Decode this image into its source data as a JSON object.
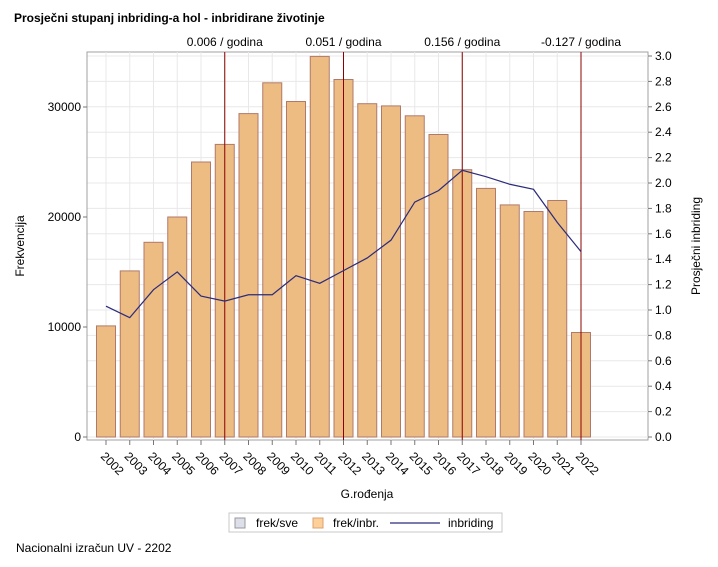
{
  "chart_data": {
    "type": "bar",
    "title": "Prosječni stupanj inbriding-a hol - inbridirane životinje",
    "xlabel": "G.rođenja",
    "ylabel": "Frekvencija",
    "y2label": "Prosječni inbriding",
    "ylim": [
      0,
      35000
    ],
    "y2lim": [
      0,
      3.0
    ],
    "yticks": [
      0,
      10000,
      20000,
      30000
    ],
    "y2ticks": [
      "0.0",
      "0.2",
      "0.4",
      "0.6",
      "0.8",
      "1.0",
      "1.2",
      "1.4",
      "1.6",
      "1.8",
      "2.0",
      "2.2",
      "2.4",
      "2.6",
      "2.8",
      "3.0"
    ],
    "grid": true,
    "categories": [
      "2002",
      "2003",
      "2004",
      "2005",
      "2006",
      "2007",
      "2008",
      "2009",
      "2010",
      "2011",
      "2012",
      "2013",
      "2014",
      "2015",
      "2016",
      "2017",
      "2018",
      "2019",
      "2020",
      "2021",
      "2022"
    ],
    "series": [
      {
        "name": "frek/inbr.",
        "type": "bar",
        "axis": "left",
        "color": "#EDBC83",
        "values": [
          10100,
          15100,
          17700,
          20000,
          25000,
          26600,
          29400,
          32200,
          30500,
          34600,
          32500,
          30300,
          30100,
          29200,
          27500,
          24300,
          22600,
          21100,
          20500,
          21500,
          9500
        ]
      },
      {
        "name": "inbriding",
        "type": "line",
        "axis": "right",
        "color": "#2B2B7A",
        "values": [
          1.03,
          0.94,
          1.16,
          1.3,
          1.11,
          1.07,
          1.12,
          1.12,
          1.27,
          1.21,
          1.31,
          1.41,
          1.55,
          1.85,
          1.94,
          2.1,
          2.05,
          1.99,
          1.95,
          1.69,
          1.46
        ]
      }
    ],
    "reference_lines": [
      {
        "x": "2007",
        "label": "0.006 / godina"
      },
      {
        "x": "2012",
        "label": "0.051 / godina"
      },
      {
        "x": "2017",
        "label": "0.156 / godina"
      },
      {
        "x": "2022",
        "label": "-0.127 / godina"
      }
    ],
    "legend": {
      "placement": "bottom",
      "entries": [
        {
          "label": "frek/sve",
          "color": "#DDE0EA"
        },
        {
          "label": "frek/inbr.",
          "color": "#FFCF99"
        },
        {
          "label": "inbriding",
          "color": "#2B2B7A"
        }
      ]
    }
  },
  "footnote": "Nacionalni izračun UV - 2202"
}
